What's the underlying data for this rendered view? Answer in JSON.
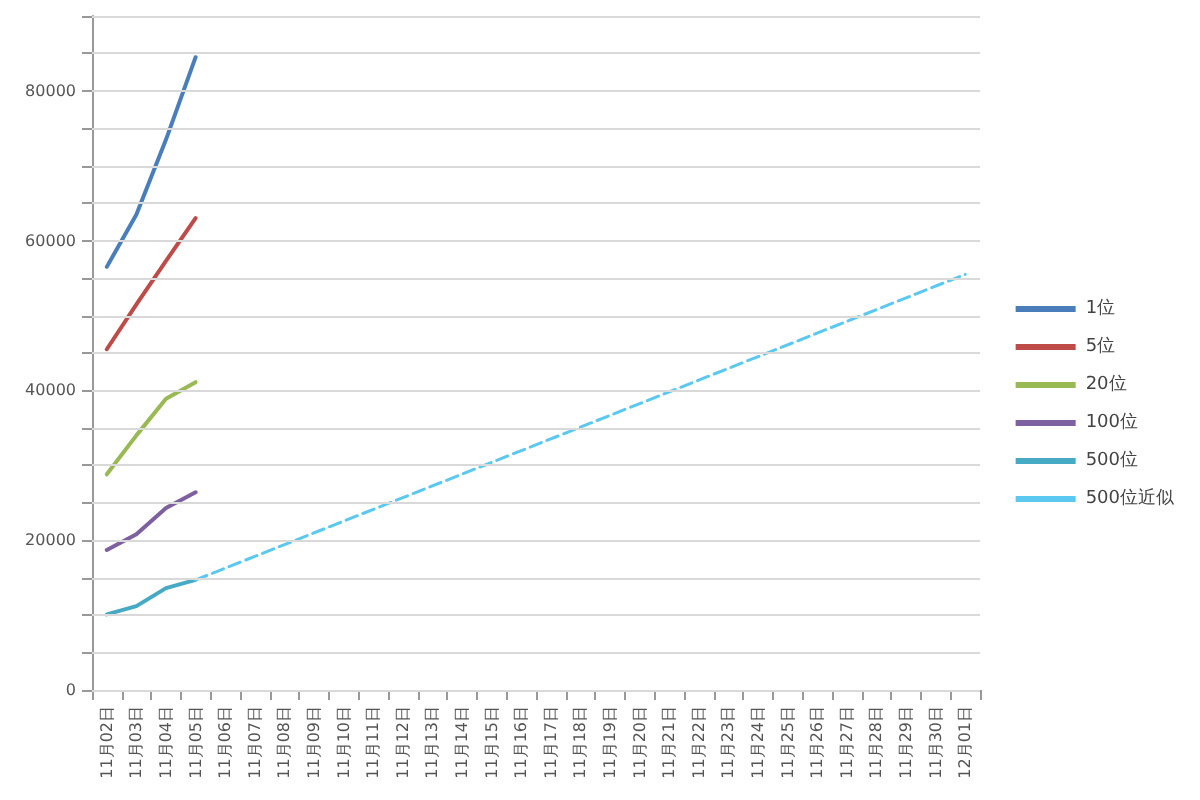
{
  "chart_data": {
    "type": "line",
    "categories": [
      "11月02日",
      "11月03日",
      "11月04日",
      "11月05日",
      "11月06日",
      "11月07日",
      "11月08日",
      "11月09日",
      "11月10日",
      "11月11日",
      "11月12日",
      "11月13日",
      "11月14日",
      "11月15日",
      "11月16日",
      "11月17日",
      "11月18日",
      "11月19日",
      "11月20日",
      "11月21日",
      "11月22日",
      "11月23日",
      "11月24日",
      "11月25日",
      "11月26日",
      "11月27日",
      "11月28日",
      "11月29日",
      "11月30日",
      "12月01日"
    ],
    "series": [
      {
        "name": "1位",
        "color": "#4a7ebb",
        "x": [
          "11月02日",
          "11月03日",
          "11月04日",
          "11月05日"
        ],
        "values": [
          56500,
          63500,
          73500,
          84500
        ]
      },
      {
        "name": "5位",
        "color": "#be4b48",
        "x": [
          "11月02日",
          "11月03日",
          "11月04日",
          "11月05日"
        ],
        "values": [
          45500,
          51500,
          57300,
          63000
        ]
      },
      {
        "name": "20位",
        "color": "#98b954",
        "x": [
          "11月02日",
          "11月03日",
          "11月04日",
          "11月05日"
        ],
        "values": [
          28800,
          34000,
          38900,
          41100
        ]
      },
      {
        "name": "100位",
        "color": "#7d60a0",
        "x": [
          "11月02日",
          "11月03日",
          "11月04日",
          "11月05日"
        ],
        "values": [
          18700,
          20800,
          24300,
          26400
        ]
      },
      {
        "name": "500位",
        "color": "#46aac5",
        "x": [
          "11月02日",
          "11月03日",
          "11月04日",
          "11月05日"
        ],
        "values": [
          10100,
          11200,
          13600,
          14700
        ]
      },
      {
        "name": "500位近似",
        "color": "#5bc8f0",
        "line_style": "dashed",
        "x": [
          "11月05日",
          "12月01日"
        ],
        "values": [
          14700,
          55500
        ]
      }
    ],
    "ylim": [
      0,
      90000
    ],
    "yticks": [
      0,
      {
        "value": 5000,
        "label": null
      },
      {
        "value": 10000,
        "label": null
      },
      {
        "value": 15000,
        "label": null
      },
      20000,
      {
        "value": 25000,
        "label": null
      },
      {
        "value": 30000,
        "label": null
      },
      {
        "value": 35000,
        "label": null
      },
      40000,
      {
        "value": 45000,
        "label": null
      },
      {
        "value": 50000,
        "label": null
      },
      {
        "value": 55000,
        "label": null
      },
      60000,
      {
        "value": 65000,
        "label": null
      },
      {
        "value": 70000,
        "label": null
      },
      {
        "value": 75000,
        "label": null
      },
      80000,
      {
        "value": 85000,
        "label": null
      },
      {
        "value": 90000,
        "label": null
      }
    ],
    "grid": "y",
    "legend": "right",
    "marker": "none",
    "line_style": "solid"
  }
}
